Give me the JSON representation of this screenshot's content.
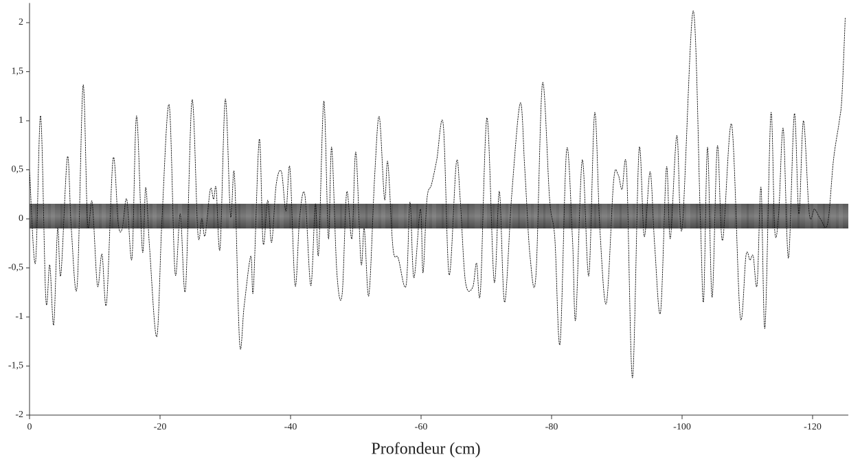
{
  "chart_data": {
    "type": "line",
    "x_label": "Profondeur (cm)",
    "xlim": [
      0,
      -125
    ],
    "ylim": [
      -2,
      2.2
    ],
    "xticks": [
      0,
      -20,
      -40,
      -60,
      -80,
      -100,
      -120
    ],
    "yticks": [
      -2,
      {
        "value": -1.5,
        "label": "-1,5"
      },
      -1,
      {
        "value": -0.5,
        "label": "-0,5"
      },
      0,
      {
        "value": 0.5,
        "label": "0,5"
      },
      1,
      {
        "value": 1.5,
        "label": "1,5"
      },
      2
    ],
    "x": [
      0,
      -0.9,
      -1.7,
      -2.5,
      -3.1,
      -3.7,
      -4.3,
      -4.8,
      -5.8,
      -6.4,
      -7.3,
      -8.2,
      -8.9,
      -9.6,
      -10.4,
      -11.1,
      -11.8,
      -12.8,
      -13.6,
      -14.2,
      -14.9,
      -15.7,
      -16.4,
      -17.3,
      -17.8,
      -18.4,
      -19.5,
      -20.3,
      -21.4,
      -22.3,
      -23.1,
      -23.9,
      -24.9,
      -25.8,
      -26.4,
      -26.9,
      -27.7,
      -28.2,
      -28.6,
      -29.2,
      -30.0,
      -30.8,
      -31.4,
      -32.2,
      -32.9,
      -33.9,
      -34.3,
      -35.2,
      -35.8,
      -36.5,
      -37.1,
      -37.8,
      -38.6,
      -39.3,
      -39.9,
      -40.7,
      -41.4,
      -42.2,
      -43.1,
      -43.8,
      -44.3,
      -45.1,
      -45.8,
      -46.3,
      -47.1,
      -47.9,
      -48.6,
      -49.4,
      -50.0,
      -50.8,
      -51.3,
      -52.0,
      -52.9,
      -53.6,
      -54.4,
      -54.9,
      -55.7,
      -56.5,
      -57.7,
      -58.3,
      -58.9,
      -59.9,
      -60.3,
      -60.9,
      -61.6,
      -62.4,
      -63.4,
      -64.3,
      -65.4,
      -66.0,
      -66.8,
      -67.9,
      -68.5,
      -69.1,
      -70.1,
      -71.2,
      -72.0,
      -72.8,
      -73.9,
      -75.2,
      -75.9,
      -76.7,
      -77.6,
      -78.6,
      -79.7,
      -80.5,
      -81.3,
      -82.3,
      -83.2,
      -83.7,
      -84.7,
      -85.7,
      -86.6,
      -87.4,
      -88.4,
      -89.5,
      -90.2,
      -90.8,
      -91.5,
      -92.4,
      -93.4,
      -94.2,
      -95.1,
      -95.8,
      -96.7,
      -97.6,
      -98.2,
      -99.2,
      -100.0,
      -101.7,
      -102.8,
      -103.3,
      -103.9,
      -104.6,
      -105.4,
      -106.2,
      -107.6,
      -108.9,
      -109.8,
      -110.4,
      -110.9,
      -111.5,
      -112.1,
      -112.7,
      -113.6,
      -114.2,
      -114.8,
      -115.5,
      -116.3,
      -117.2,
      -117.9,
      -118.6,
      -119.5,
      -120.3,
      -121.2,
      -122.3,
      -123.2,
      -124.1,
      -124.5,
      -125
    ],
    "series": [
      {
        "color": "#111111",
        "values": [
          0.5,
          -0.45,
          1.05,
          -0.82,
          -0.47,
          -1.08,
          -0.1,
          -0.57,
          0.63,
          -0.1,
          -0.68,
          1.36,
          -0.05,
          0.17,
          -0.68,
          -0.36,
          -0.86,
          0.61,
          -0.05,
          -0.1,
          0.2,
          -0.4,
          1.05,
          -0.33,
          0.32,
          -0.3,
          -1.2,
          0,
          1.16,
          -0.55,
          0.05,
          -0.72,
          1.21,
          -0.15,
          0,
          -0.17,
          0.3,
          0.2,
          0.31,
          -0.3,
          1.22,
          0.03,
          0.45,
          -1.27,
          -0.88,
          -0.38,
          -0.72,
          0.81,
          -0.25,
          0.19,
          -0.24,
          0.35,
          0.48,
          0.08,
          0.52,
          -0.68,
          0.02,
          0.24,
          -0.68,
          0.15,
          -0.35,
          1.2,
          -0.2,
          0.73,
          -0.55,
          -0.77,
          0.27,
          -0.2,
          0.68,
          -0.45,
          -0.1,
          -0.78,
          0.45,
          1.04,
          0.2,
          0.58,
          -0.3,
          -0.4,
          -0.68,
          0.17,
          -0.6,
          0.1,
          -0.55,
          0.2,
          0.35,
          0.6,
          0.96,
          -0.57,
          0.57,
          0.2,
          -0.64,
          -0.7,
          -0.45,
          -0.74,
          1.03,
          -0.64,
          0.28,
          -0.85,
          0.25,
          1.18,
          0.5,
          -0.38,
          -0.58,
          1.38,
          0.2,
          -0.2,
          -1.27,
          0.7,
          -0.2,
          -1.02,
          0.6,
          -0.58,
          1.08,
          -0.1,
          -0.86,
          0.38,
          0.45,
          0.3,
          0.5,
          -1.62,
          0.7,
          -0.18,
          0.48,
          -0.27,
          -0.95,
          0.52,
          -0.2,
          0.85,
          -0.1,
          2.12,
          0,
          -0.83,
          0.73,
          -0.8,
          0.74,
          -0.22,
          0.96,
          -0.99,
          -0.37,
          -0.42,
          -0.38,
          -0.67,
          0.32,
          -1.11,
          1.07,
          -0.12,
          0.05,
          0.92,
          -0.4,
          1.07,
          0.05,
          1.0,
          0.05,
          0.1,
          0.0,
          -0.05,
          0.6,
          1.0,
          1.25,
          2.05
        ]
      }
    ]
  }
}
